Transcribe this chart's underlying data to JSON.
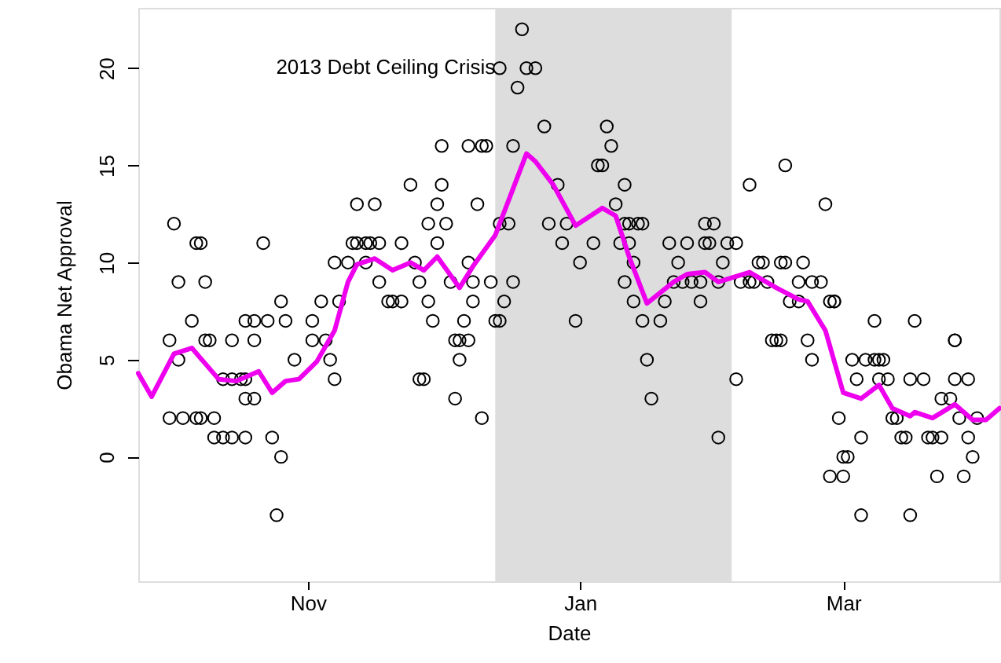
{
  "chart_data": {
    "type": "scatter",
    "xlabel": "Date",
    "ylabel": "Obama Net Approval",
    "xlim": [
      "2013-09-24",
      "2014-04-05"
    ],
    "xticks": [
      {
        "value": "2013-11-01",
        "label": "Nov"
      },
      {
        "value": "2014-01-01",
        "label": "Jan"
      },
      {
        "value": "2014-03-01",
        "label": "Mar"
      }
    ],
    "ylim": [
      -6.4,
      23.1
    ],
    "yticks": [
      0,
      5,
      10,
      15,
      20
    ],
    "grid": false,
    "bands": [
      {
        "axis": "x",
        "from": "2013-12-13",
        "to": "2014-02-04",
        "label": "2013 Debt Ceiling Crisis",
        "color": "#dddddd"
      }
    ],
    "series": [
      {
        "color": "#000000",
        "marker": "circle",
        "x": [
          "2013-10-01",
          "2013-10-01",
          "2013-10-02",
          "2013-10-03",
          "2013-10-03",
          "2013-10-04",
          "2013-10-06",
          "2013-10-07",
          "2013-10-07",
          "2013-10-08",
          "2013-10-08",
          "2013-10-09",
          "2013-10-09",
          "2013-10-10",
          "2013-10-11",
          "2013-10-11",
          "2013-10-13",
          "2013-10-13",
          "2013-10-15",
          "2013-10-15",
          "2013-10-15",
          "2013-10-17",
          "2013-10-18",
          "2013-10-18",
          "2013-10-18",
          "2013-10-18",
          "2013-10-20",
          "2013-10-20",
          "2013-10-20",
          "2013-10-22",
          "2013-10-23",
          "2013-10-24",
          "2013-10-25",
          "2013-10-26",
          "2013-10-26",
          "2013-10-27",
          "2013-10-29",
          "2013-11-02",
          "2013-11-02",
          "2013-11-04",
          "2013-11-05",
          "2013-11-06",
          "2013-11-07",
          "2013-11-07",
          "2013-11-08",
          "2013-11-10",
          "2013-11-11",
          "2013-11-12",
          "2013-11-12",
          "2013-11-14",
          "2013-11-14",
          "2013-11-15",
          "2013-11-16",
          "2013-11-17",
          "2013-11-17",
          "2013-11-19",
          "2013-11-20",
          "2013-11-22",
          "2013-11-22",
          "2013-11-24",
          "2013-11-25",
          "2013-11-26",
          "2013-11-26",
          "2013-11-27",
          "2013-11-28",
          "2013-11-28",
          "2013-11-29",
          "2013-11-30",
          "2013-11-30",
          "2013-12-01",
          "2013-12-01",
          "2013-12-02",
          "2013-12-03",
          "2013-12-04",
          "2013-12-04",
          "2013-12-05",
          "2013-12-05",
          "2013-12-06",
          "2013-12-07",
          "2013-12-07",
          "2013-12-07",
          "2013-12-08",
          "2013-12-08",
          "2013-12-09",
          "2013-12-10",
          "2013-12-10",
          "2013-12-11",
          "2013-12-12",
          "2013-12-13",
          "2013-12-14",
          "2013-12-14",
          "2013-12-14",
          "2013-12-15",
          "2013-12-16",
          "2013-12-17",
          "2013-12-17",
          "2013-12-18",
          "2013-12-19",
          "2013-12-20",
          "2013-12-22",
          "2013-12-24",
          "2013-12-25",
          "2013-12-27",
          "2013-12-28",
          "2013-12-29",
          "2013-12-31",
          "2014-01-01",
          "2014-01-04",
          "2014-01-05",
          "2014-01-06",
          "2014-01-07",
          "2014-01-08",
          "2014-01-09",
          "2014-01-10",
          "2014-01-11",
          "2014-01-11",
          "2014-01-11",
          "2014-01-12",
          "2014-01-12",
          "2014-01-13",
          "2014-01-13",
          "2014-01-14",
          "2014-01-15",
          "2014-01-15",
          "2014-01-16",
          "2014-01-17",
          "2014-01-19",
          "2014-01-20",
          "2014-01-21",
          "2014-01-22",
          "2014-01-23",
          "2014-01-24",
          "2014-01-25",
          "2014-01-26",
          "2014-01-28",
          "2014-01-28",
          "2014-01-29",
          "2014-01-29",
          "2014-01-31",
          "2014-01-30",
          "2014-02-01",
          "2014-02-01",
          "2014-02-02",
          "2014-02-03",
          "2014-02-05",
          "2014-02-05",
          "2014-02-06",
          "2014-02-08",
          "2014-02-08",
          "2014-02-09",
          "2014-02-10",
          "2014-02-11",
          "2014-02-12",
          "2014-02-13",
          "2014-02-14",
          "2014-02-15",
          "2014-02-15",
          "2014-02-16",
          "2014-02-16",
          "2014-02-17",
          "2014-02-19",
          "2014-02-19",
          "2014-02-20",
          "2014-02-21",
          "2014-02-22",
          "2014-02-22",
          "2014-02-24",
          "2014-02-25",
          "2014-02-26",
          "2014-02-26",
          "2014-02-27",
          "2014-02-27",
          "2014-02-28",
          "2014-03-01",
          "2014-03-01",
          "2014-03-02",
          "2014-03-03",
          "2014-03-04",
          "2014-03-05",
          "2014-03-05",
          "2014-03-06",
          "2014-03-08",
          "2014-03-08",
          "2014-03-09",
          "2014-03-09",
          "2014-03-10",
          "2014-03-11",
          "2014-03-12",
          "2014-03-13",
          "2014-03-14",
          "2014-03-15",
          "2014-03-16",
          "2014-03-16",
          "2014-03-17",
          "2014-03-19",
          "2014-03-20",
          "2014-03-21",
          "2014-03-22",
          "2014-03-23",
          "2014-03-23",
          "2014-03-25",
          "2014-03-26",
          "2014-03-26",
          "2014-03-26",
          "2014-03-27",
          "2014-03-28",
          "2014-03-29",
          "2014-03-29",
          "2014-03-30",
          "2014-03-31"
        ],
        "values": [
          6,
          2,
          12,
          9,
          5,
          2,
          7,
          11,
          2,
          11,
          2,
          9,
          6,
          6,
          2,
          1,
          1,
          4,
          4,
          6,
          1,
          4,
          7,
          1,
          3,
          4,
          3,
          7,
          6,
          11,
          7,
          1,
          -3,
          8,
          0,
          7,
          5,
          7,
          6,
          8,
          6,
          5,
          4,
          10,
          8,
          10,
          11,
          13,
          11,
          11,
          10,
          11,
          13,
          9,
          11,
          8,
          8,
          8,
          11,
          14,
          10,
          9,
          4,
          4,
          12,
          8,
          7,
          13,
          11,
          16,
          14,
          12,
          9,
          6,
          3,
          6,
          5,
          7,
          16,
          10,
          6,
          9,
          8,
          13,
          16,
          2,
          16,
          9,
          7,
          7,
          20,
          12,
          8,
          12,
          16,
          9,
          19,
          22,
          20,
          20,
          17,
          12,
          14,
          11,
          12,
          7,
          10,
          11,
          15,
          15,
          17,
          16,
          13,
          11,
          14,
          12,
          9,
          12,
          11,
          8,
          10,
          12,
          12,
          7,
          5,
          3,
          7,
          8,
          11,
          9,
          10,
          9,
          11,
          9,
          9,
          8,
          12,
          11,
          12,
          11,
          1,
          9,
          10,
          11,
          11,
          4,
          9,
          9,
          14,
          9,
          10,
          10,
          9,
          6,
          6,
          10,
          6,
          10,
          15,
          8,
          9,
          8,
          10,
          6,
          9,
          5,
          9,
          13,
          8,
          -1,
          8,
          8,
          2,
          0,
          -1,
          0,
          5,
          4,
          1,
          -3,
          5,
          5,
          7,
          4,
          5,
          5,
          4,
          2,
          2,
          1,
          1,
          4,
          -3,
          7,
          4,
          1,
          1,
          -1,
          3,
          1,
          3,
          6,
          6,
          4,
          2,
          -1,
          4,
          1,
          0,
          2
        ]
      },
      {
        "type": "line",
        "color": "#ee00ee",
        "x": [
          "2013-09-24",
          "2013-09-27",
          "2013-10-02",
          "2013-10-06",
          "2013-10-12",
          "2013-10-16",
          "2013-10-21",
          "2013-10-24",
          "2013-10-27",
          "2013-10-30",
          "2013-11-03",
          "2013-11-07",
          "2013-11-10",
          "2013-11-12",
          "2013-11-16",
          "2013-11-20",
          "2013-11-24",
          "2013-11-27",
          "2013-11-30",
          "2013-12-05",
          "2013-12-08",
          "2013-12-13",
          "2013-12-17",
          "2013-12-20",
          "2013-12-22",
          "2013-12-26",
          "2013-12-31",
          "2014-01-06",
          "2014-01-09",
          "2014-01-12",
          "2014-01-16",
          "2014-01-22",
          "2014-01-25",
          "2014-01-29",
          "2014-02-01",
          "2014-02-08",
          "2014-02-14",
          "2014-02-19",
          "2014-02-21",
          "2014-02-25",
          "2014-03-01",
          "2014-03-05",
          "2014-03-09",
          "2014-03-12",
          "2014-03-16",
          "2014-03-17",
          "2014-03-21",
          "2014-03-26",
          "2014-03-30",
          "2014-04-02",
          "2014-04-05"
        ],
        "values": [
          4.3,
          3.1,
          5.3,
          5.6,
          4.0,
          3.9,
          4.4,
          3.3,
          3.9,
          4.0,
          4.9,
          6.5,
          9.0,
          9.9,
          10.2,
          9.6,
          10.0,
          9.6,
          10.3,
          8.7,
          9.8,
          11.4,
          13.8,
          15.6,
          15.2,
          14.0,
          11.9,
          12.8,
          12.4,
          10.3,
          7.9,
          9.0,
          9.4,
          9.5,
          9.0,
          9.5,
          8.7,
          8.1,
          8.0,
          6.5,
          3.3,
          3.0,
          3.7,
          2.5,
          2.1,
          2.3,
          2.0,
          2.7,
          1.9,
          1.9,
          2.5
        ]
      }
    ]
  }
}
